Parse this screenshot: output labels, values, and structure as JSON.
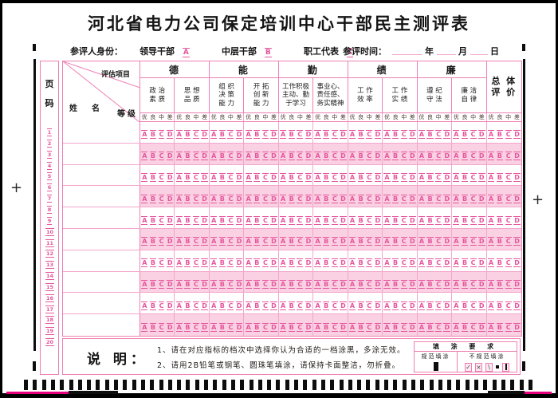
{
  "title": "河北省电力公司保定培训中心干部民主测评表",
  "identity": {
    "label": "参评人身份：",
    "options": [
      {
        "label": "领导干部",
        "bubble": "A"
      },
      {
        "label": "中层干部",
        "bubble": "B"
      },
      {
        "label": "职工代表",
        "bubble": "C"
      }
    ],
    "time_label": "参评时间：",
    "time_units": [
      "年",
      "月",
      "日"
    ]
  },
  "page_col": {
    "header": [
      "页",
      "码"
    ],
    "numbers": [
      "1",
      "2",
      "3",
      "4",
      "5",
      "6",
      "7",
      "8",
      "9",
      "10",
      "11",
      "12",
      "13",
      "14",
      "15",
      "16",
      "17",
      "18",
      "19",
      "20"
    ]
  },
  "corner": {
    "project": "评估项目",
    "name": "姓名",
    "grade": "等级"
  },
  "groups": [
    {
      "label": "德",
      "subs": [
        [
          "政 治",
          "素 质"
        ],
        [
          "思 想",
          "品 质"
        ]
      ]
    },
    {
      "label": "能",
      "subs": [
        [
          "组 织",
          "决 策",
          "能 力"
        ],
        [
          "开 拓",
          "创 新",
          "能 力"
        ]
      ]
    },
    {
      "label": "勤",
      "subs": [
        [
          "工作积极",
          "主动、勤",
          "于学习"
        ],
        [
          "事业心、",
          "责任感、",
          "务实精神"
        ]
      ]
    },
    {
      "label": "绩",
      "subs": [
        [
          "工 作",
          "效 率"
        ],
        [
          "工 作",
          "实 绩"
        ]
      ]
    },
    {
      "label": "廉",
      "subs": [
        [
          "遵 纪",
          "守 法"
        ],
        [
          "廉 洁",
          "自 律"
        ]
      ]
    }
  ],
  "overall": [
    "总 体",
    "评 价"
  ],
  "grades": [
    "优",
    "良",
    "中",
    "差"
  ],
  "bubbles": [
    "A",
    "B",
    "C",
    "D"
  ],
  "row_count": 10,
  "notes": {
    "label": "说 明：",
    "items": [
      "1、请在对应指标的档次中选择你认为合适的一档涂黑，多涂无效。",
      "2、请用2B铅笔或钢笔、圆珠笔填涂，请保持卡面整洁，勿折叠。"
    ]
  },
  "fill_req": {
    "title": "填 涂 要 求",
    "standard_label": "规范填涂",
    "nonstandard_label": "不规范填涂",
    "standard_mark": "▮",
    "bad_marks": [
      "✓",
      "×",
      "\\",
      "·",
      "▮"
    ]
  },
  "colors": {
    "pink_border": "#ef7fb3",
    "bubble_pink": "#e6559d",
    "row_shade": "#fad1e2",
    "edge_magenta": "#e6007e",
    "ink": "#141414"
  }
}
